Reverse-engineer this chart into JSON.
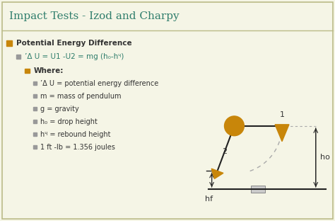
{
  "title": "Impact Tests - Izod and Charpy",
  "title_color": "#2E7D6B",
  "title_fontsize": 11,
  "bg_color": "#F5F5E6",
  "text_color": "#333333",
  "bullet_color": "#C8860A",
  "green_color": "#2E7D6B",
  "bullet1_text": "Potential Energy Difference",
  "bullet2_text": "’Δ U = U1 -U2 = mg (h₀-hᶣ)",
  "where_text": "Where:",
  "items": [
    "’Δ U = potential energy difference",
    "m = mass of pendulum",
    "g = gravity",
    "h₀ = drop height",
    "hᶣ = rebound height",
    "1 ft -lb = 1.356 joules"
  ],
  "pendulum_color": "#C8860A",
  "line_color": "#222222",
  "dashed_color": "#AAAAAA",
  "border_color": "#BBBB88",
  "label1": "1",
  "label2": "2",
  "label_ho": "ho",
  "label_hf": "hf"
}
